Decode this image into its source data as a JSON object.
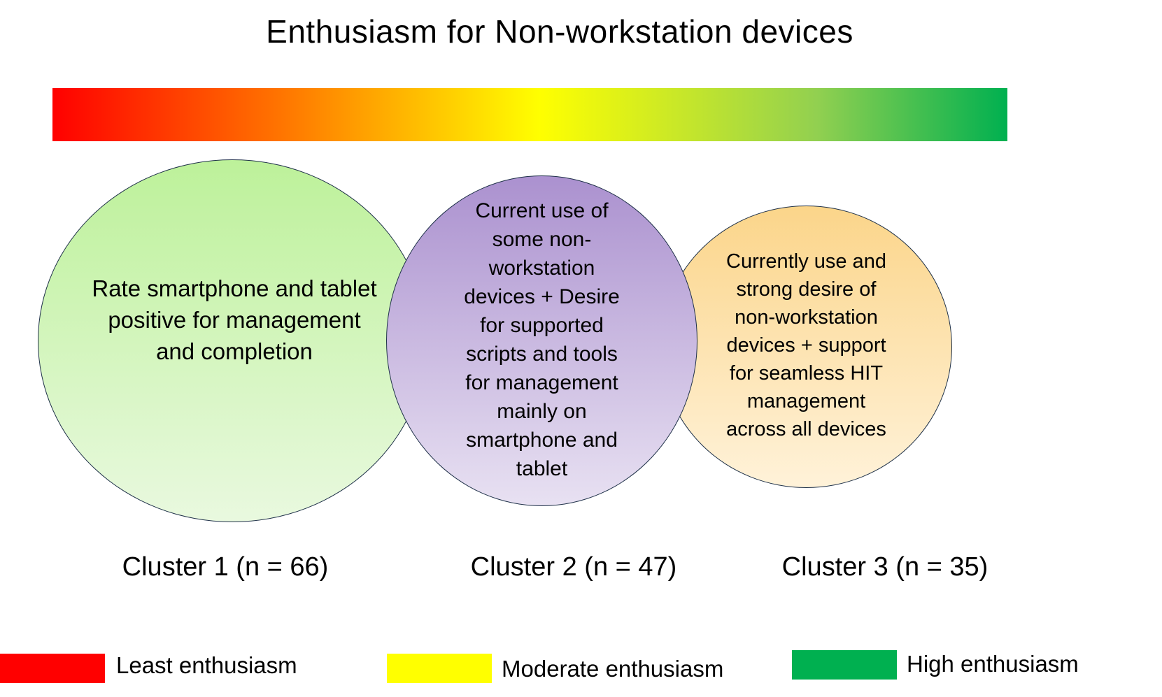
{
  "title": "Enthusiasm for Non-workstation devices",
  "gradient_colors": [
    "#ff0000",
    "#ff7a00",
    "#ffff00",
    "#92d050",
    "#00b050"
  ],
  "circles": [
    {
      "text": "Rate smartphone and tablet\npositive for management\nand completion",
      "color": "#c6efa8"
    },
    {
      "text": "Current use of\nsome non-\nworkstation\ndevices + Desire\nfor supported\nscripts and tools\nfor management\nmainly on\nsmartphone and\ntablet",
      "color": "#b9a3d9"
    },
    {
      "text": "Currently use and\nstrong desire of\nnon-workstation\ndevices + support\nfor seamless HIT\nmanagement\nacross all devices",
      "color": "#fcdca0"
    }
  ],
  "clusters": [
    {
      "label": "Cluster 1 (n = 66)"
    },
    {
      "label": "Cluster 2 (n = 47)"
    },
    {
      "label": "Cluster 3 (n = 35)"
    }
  ],
  "legend": [
    {
      "label": "Least enthusiasm",
      "color": "#ff0000"
    },
    {
      "label": "Moderate enthusiasm",
      "color": "#ffff00"
    },
    {
      "label": "High enthusiasm",
      "color": "#00b050"
    }
  ]
}
